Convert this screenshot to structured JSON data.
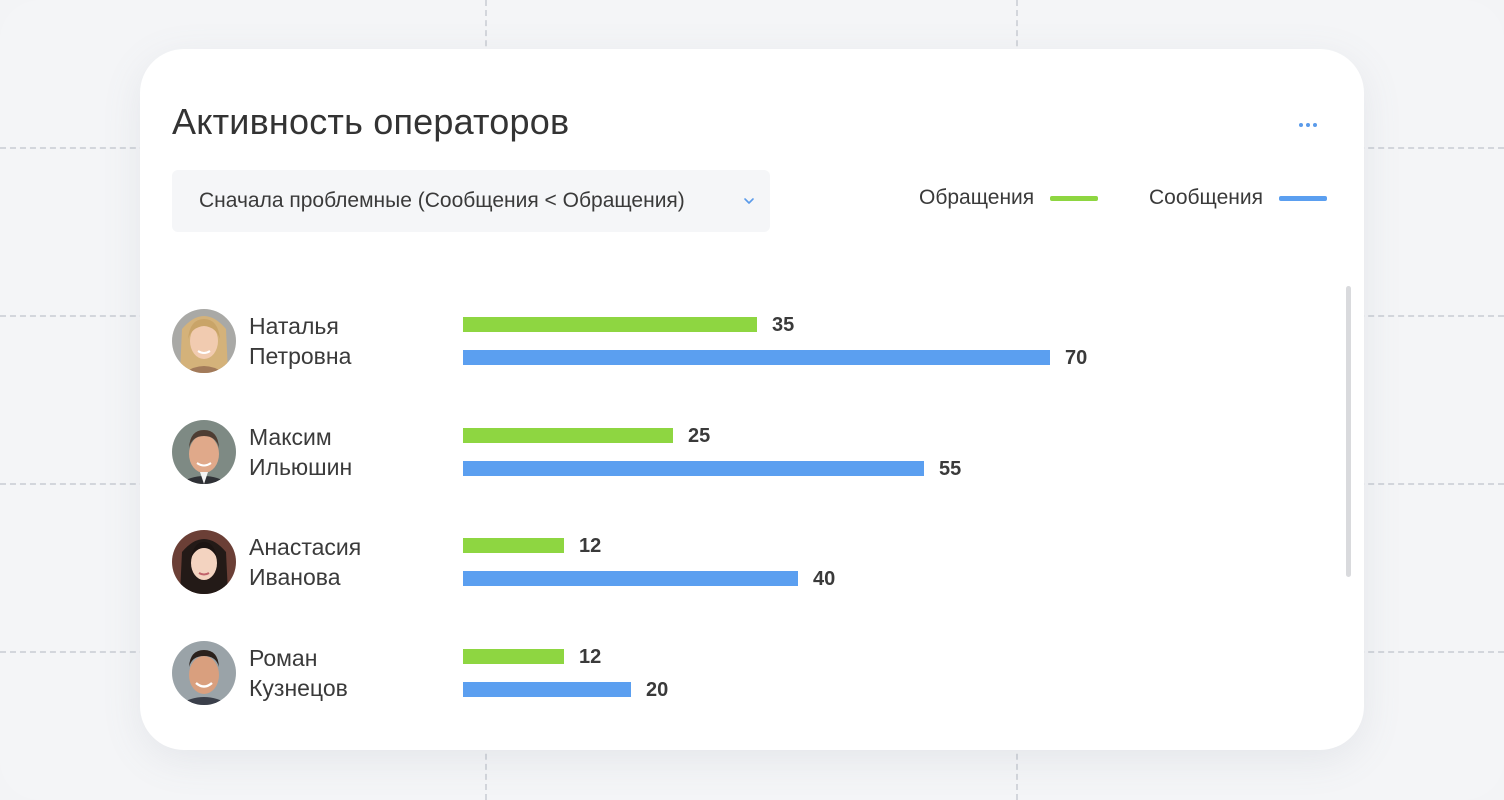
{
  "widget": {
    "title": "Активность операторов",
    "menu_icon": "more-horizontal-icon",
    "sort_select": {
      "value": "Сначала проблемные (Сообщения < Обращения)",
      "icon": "chevron-down-icon"
    },
    "legend": [
      {
        "label": "Обращения",
        "color": "#8ed641"
      },
      {
        "label": "Сообщения",
        "color": "#5b9ff0"
      }
    ],
    "colors": {
      "requests": "#8ed641",
      "messages": "#5b9ff0",
      "accent": "#5b9bea"
    },
    "max_value": 70,
    "operators": [
      {
        "first_name": "Наталья",
        "last_name": "Петровна",
        "requests": 35,
        "messages": 70
      },
      {
        "first_name": "Максим",
        "last_name": "Ильюшин",
        "requests": 25,
        "messages": 55
      },
      {
        "first_name": "Анастасия",
        "last_name": "Иванова",
        "requests": 12,
        "messages": 40
      },
      {
        "first_name": "Роман",
        "last_name": "Кузнецов",
        "requests": 12,
        "messages": 20
      }
    ]
  }
}
